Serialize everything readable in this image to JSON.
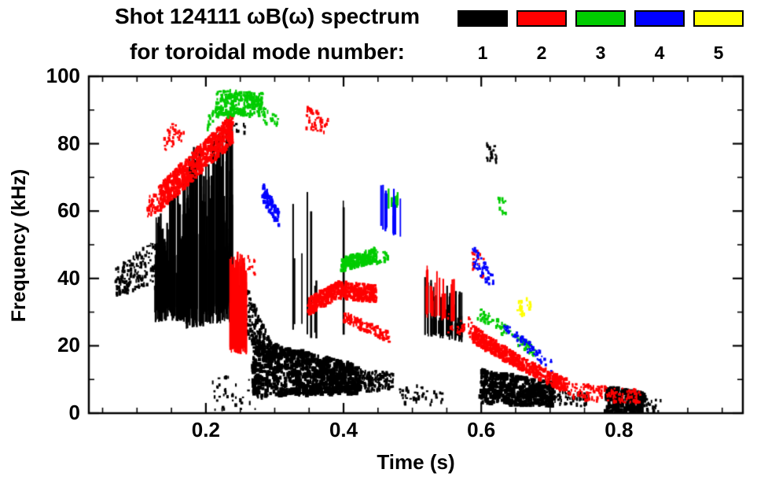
{
  "title": {
    "line1": "Shot 124111 ωB(ω) spectrum",
    "line2": "for toroidal mode number:"
  },
  "legend": {
    "modes": [
      {
        "label": "1",
        "color": "#000000"
      },
      {
        "label": "2",
        "color": "#ff0000"
      },
      {
        "label": "3",
        "color": "#00cc00"
      },
      {
        "label": "4",
        "color": "#0000ff"
      },
      {
        "label": "5",
        "color": "#ffff00"
      }
    ]
  },
  "chart_data": {
    "type": "scatter",
    "title": "Shot 124111 ωB(ω) spectrum for toroidal mode number 1-5",
    "xlabel": "Time (s)",
    "ylabel": "Frequency (kHz)",
    "xlim": [
      0.03,
      0.98
    ],
    "ylim": [
      0,
      100
    ],
    "xticks": [
      0.2,
      0.4,
      0.6,
      0.8
    ],
    "xtick_labels": [
      "0.2",
      "0.4",
      "0.6",
      "0.8"
    ],
    "yticks": [
      0,
      20,
      40,
      60,
      80,
      100
    ],
    "ytick_labels": [
      "0",
      "20",
      "40",
      "60",
      "80",
      "100"
    ],
    "x_minor_step": 0.05,
    "y_minor_step": 10,
    "grid": false,
    "legend_position": "top-right",
    "series": [
      {
        "name": "n=1",
        "mode": 1,
        "color": "#000000",
        "clusters": [
          {
            "kind": "scatter",
            "t": [
              0.068,
              0.13
            ],
            "f_lo": [
              35,
              37
            ],
            "f_hi": [
              43,
              52
            ],
            "n": 180
          },
          {
            "kind": "striation",
            "t": [
              0.125,
              0.175
            ],
            "f_lo": [
              27,
              27
            ],
            "f_hi": [
              58,
              74
            ],
            "n": 90
          },
          {
            "kind": "striation",
            "t": [
              0.17,
              0.238
            ],
            "f_lo": [
              25,
              27
            ],
            "f_hi": [
              78,
              87
            ],
            "n": 120
          },
          {
            "kind": "scatter",
            "t": [
              0.21,
              0.285
            ],
            "f_lo": [
              1,
              1
            ],
            "f_hi": [
              12,
              10
            ],
            "n": 45
          },
          {
            "kind": "scatter",
            "t": [
              0.25,
              0.302
            ],
            "f_lo": [
              26,
              10
            ],
            "f_hi": [
              42,
              18
            ],
            "n": 240
          },
          {
            "kind": "blob",
            "t": [
              0.268,
              0.425
            ],
            "f_lo": [
              5,
              6
            ],
            "f_hi": [
              22,
              14
            ],
            "n": 850
          },
          {
            "kind": "scatter",
            "t": [
              0.425,
              0.472
            ],
            "f_lo": [
              6,
              7
            ],
            "f_hi": [
              13,
              12
            ],
            "n": 130
          },
          {
            "kind": "striation",
            "t": [
              0.315,
              0.4
            ],
            "f_lo": [
              22,
              20
            ],
            "f_hi": [
              75,
              64
            ],
            "n": 9
          },
          {
            "kind": "striation",
            "t": [
              0.515,
              0.572
            ],
            "f_lo": [
              23,
              21
            ],
            "f_hi": [
              41,
              36
            ],
            "n": 42
          },
          {
            "kind": "scatter",
            "t": [
              0.48,
              0.545
            ],
            "f_lo": [
              2,
              2
            ],
            "f_hi": [
              9,
              7
            ],
            "n": 40
          },
          {
            "kind": "blob",
            "t": [
              0.598,
              0.705
            ],
            "f_lo": [
              3,
              2
            ],
            "f_hi": [
              13,
              9
            ],
            "n": 430
          },
          {
            "kind": "scatter",
            "t": [
              0.705,
              0.755
            ],
            "f_lo": [
              2,
              2
            ],
            "f_hi": [
              7,
              6
            ],
            "n": 55
          },
          {
            "kind": "blob",
            "t": [
              0.78,
              0.838
            ],
            "f_lo": [
              0,
              0
            ],
            "f_hi": [
              8,
              6
            ],
            "n": 210
          },
          {
            "kind": "scatter",
            "t": [
              0.838,
              0.862
            ],
            "f_lo": [
              0,
              0
            ],
            "f_hi": [
              5,
              4
            ],
            "n": 15
          },
          {
            "kind": "scatter",
            "t": [
              0.608,
              0.622
            ],
            "f_lo": [
              75,
              74
            ],
            "f_hi": [
              82,
              80
            ],
            "n": 20
          },
          {
            "kind": "scatter",
            "t": [
              0.228,
              0.258
            ],
            "f_lo": [
              82,
              83
            ],
            "f_hi": [
              88,
              87
            ],
            "n": 12
          }
        ]
      },
      {
        "name": "n=2",
        "mode": 2,
        "color": "#ff0000",
        "clusters": [
          {
            "kind": "scatter",
            "t": [
              0.115,
              0.135
            ],
            "f_lo": [
              58,
              60
            ],
            "f_hi": [
              64,
              68
            ],
            "n": 45
          },
          {
            "kind": "band",
            "t": [
              0.134,
              0.239
            ],
            "f_lo": [
              60,
              80
            ],
            "f_hi": [
              68,
              89
            ],
            "n": 650
          },
          {
            "kind": "scatter",
            "t": [
              0.14,
              0.168
            ],
            "f_lo": [
              78,
              80
            ],
            "f_hi": [
              85,
              87
            ],
            "n": 35
          },
          {
            "kind": "striation",
            "t": [
              0.234,
              0.258
            ],
            "f_lo": [
              18,
              17
            ],
            "f_hi": [
              50,
              46
            ],
            "n": 60
          },
          {
            "kind": "scatter",
            "t": [
              0.261,
              0.272
            ],
            "f_lo": [
              42,
              41
            ],
            "f_hi": [
              47,
              45
            ],
            "n": 12
          },
          {
            "kind": "band",
            "t": [
              0.348,
              0.392
            ],
            "f_lo": [
              29,
              34
            ],
            "f_hi": [
              34,
              39
            ],
            "n": 210
          },
          {
            "kind": "band",
            "t": [
              0.392,
              0.448
            ],
            "f_lo": [
              34,
              33
            ],
            "f_hi": [
              39,
              38
            ],
            "n": 250
          },
          {
            "kind": "scatter",
            "t": [
              0.4,
              0.468
            ],
            "f_lo": [
              27,
              21
            ],
            "f_hi": [
              30,
              24
            ],
            "n": 120
          },
          {
            "kind": "scatter",
            "t": [
              0.345,
              0.378
            ],
            "f_lo": [
              84,
              83
            ],
            "f_hi": [
              91,
              88
            ],
            "n": 45
          },
          {
            "kind": "striation",
            "t": [
              0.519,
              0.56
            ],
            "f_lo": [
              28,
              27
            ],
            "f_hi": [
              45,
              40
            ],
            "n": 20
          },
          {
            "kind": "scatter",
            "t": [
              0.551,
              0.588
            ],
            "f_lo": [
              24,
              22
            ],
            "f_hi": [
              30,
              28
            ],
            "n": 30
          },
          {
            "kind": "band",
            "t": [
              0.587,
              0.655
            ],
            "f_lo": [
              21,
              13
            ],
            "f_hi": [
              26,
              17
            ],
            "n": 260
          },
          {
            "kind": "band",
            "t": [
              0.655,
              0.725
            ],
            "f_lo": [
              13,
              6
            ],
            "f_hi": [
              17,
              10
            ],
            "n": 200
          },
          {
            "kind": "scatter",
            "t": [
              0.725,
              0.832
            ],
            "f_lo": [
              4,
              3
            ],
            "f_hi": [
              9,
              7
            ],
            "n": 135
          },
          {
            "kind": "scatter",
            "t": [
              0.585,
              0.605
            ],
            "f_lo": [
              42,
              40
            ],
            "f_hi": [
              50,
              46
            ],
            "n": 18
          }
        ]
      },
      {
        "name": "n=3",
        "mode": 3,
        "color": "#00cc00",
        "clusters": [
          {
            "kind": "scatter",
            "t": [
              0.202,
              0.217
            ],
            "f_lo": [
              84,
              86
            ],
            "f_hi": [
              89,
              90
            ],
            "n": 15
          },
          {
            "kind": "band",
            "t": [
              0.215,
              0.282
            ],
            "f_lo": [
              88,
              88
            ],
            "f_hi": [
              96,
              95
            ],
            "n": 220
          },
          {
            "kind": "scatter",
            "t": [
              0.282,
              0.305
            ],
            "f_lo": [
              86,
              85
            ],
            "f_hi": [
              91,
              88
            ],
            "n": 25
          },
          {
            "kind": "band",
            "t": [
              0.397,
              0.447
            ],
            "f_lo": [
              42,
              45
            ],
            "f_hi": [
              46,
              49
            ],
            "n": 200
          },
          {
            "kind": "scatter",
            "t": [
              0.447,
              0.465
            ],
            "f_lo": [
              44,
              45
            ],
            "f_hi": [
              48,
              48
            ],
            "n": 20
          },
          {
            "kind": "striation",
            "t": [
              0.458,
              0.478
            ],
            "f_lo": [
              60,
              61
            ],
            "f_hi": [
              70,
              67
            ],
            "n": 8
          },
          {
            "kind": "scatter",
            "t": [
              0.595,
              0.678
            ],
            "f_lo": [
              28,
              16
            ],
            "f_hi": [
              32,
              20
            ],
            "n": 90
          },
          {
            "kind": "scatter",
            "t": [
              0.619,
              0.636
            ],
            "f_lo": [
              60,
              59
            ],
            "f_hi": [
              65,
              63
            ],
            "n": 12
          }
        ]
      },
      {
        "name": "n=4",
        "mode": 4,
        "color": "#0000ff",
        "clusters": [
          {
            "kind": "band",
            "t": [
              0.282,
              0.307
            ],
            "f_lo": [
              63,
              55
            ],
            "f_hi": [
              69,
              60
            ],
            "n": 70
          },
          {
            "kind": "striation",
            "t": [
              0.448,
              0.482
            ],
            "f_lo": [
              54,
              52
            ],
            "f_hi": [
              72,
              65
            ],
            "n": 13
          },
          {
            "kind": "scatter",
            "t": [
              0.587,
              0.618
            ],
            "f_lo": [
              44,
              36
            ],
            "f_hi": [
              50,
              41
            ],
            "n": 48
          },
          {
            "kind": "scatter",
            "t": [
              0.633,
              0.702
            ],
            "f_lo": [
              24,
              12
            ],
            "f_hi": [
              27,
              16
            ],
            "n": 65
          }
        ]
      },
      {
        "name": "n=5",
        "mode": 5,
        "color": "#ffff00",
        "clusters": [
          {
            "kind": "scatter",
            "t": [
              0.652,
              0.672
            ],
            "f_lo": [
              28,
              30
            ],
            "f_hi": [
              33,
              35
            ],
            "n": 24
          }
        ]
      }
    ]
  }
}
